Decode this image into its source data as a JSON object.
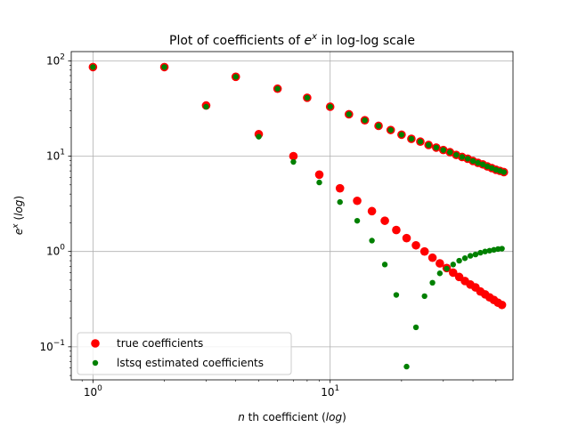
{
  "chart_data": {
    "type": "scatter",
    "title_main": "Plot of coefficients of ",
    "title_base": "e",
    "title_sup": "x",
    "title_tail": " in log-log scale",
    "xlabel_pre": "n",
    "xlabel_mid": " th coefficient (",
    "xlabel_log": "log",
    "xlabel_post": ")",
    "ylabel_base": "e",
    "ylabel_sup": "x",
    "ylabel_mid": " (",
    "ylabel_log": "log",
    "ylabel_post": ")",
    "xscale": "log",
    "yscale": "log",
    "xlim": [
      0.81,
      59
    ],
    "ylim": [
      0.045,
      125
    ],
    "grid": true,
    "legend_position": "lower-left",
    "x_ticks": [
      {
        "value": 1,
        "base": "10",
        "exp": "0"
      },
      {
        "value": 10,
        "base": "10",
        "exp": "1"
      }
    ],
    "y_ticks": [
      {
        "value": 0.1,
        "base": "10",
        "exp": "−1"
      },
      {
        "value": 1,
        "base": "10",
        "exp": "0"
      },
      {
        "value": 10,
        "base": "10",
        "exp": "1"
      },
      {
        "value": 100,
        "base": "10",
        "exp": "2"
      }
    ],
    "series": [
      {
        "name": "true coefficients",
        "color": "#ff0000",
        "marker_size": 4.8,
        "points": [
          [
            1,
            86
          ],
          [
            2,
            86
          ],
          [
            3,
            34
          ],
          [
            4,
            68
          ],
          [
            5,
            17
          ],
          [
            6,
            51
          ],
          [
            7,
            10
          ],
          [
            8,
            41
          ],
          [
            9,
            6.4
          ],
          [
            10,
            33
          ],
          [
            11,
            4.6
          ],
          [
            12,
            27.5
          ],
          [
            13,
            3.4
          ],
          [
            14,
            23.8
          ],
          [
            15,
            2.65
          ],
          [
            16,
            20.8
          ],
          [
            17,
            2.1
          ],
          [
            18,
            18.8
          ],
          [
            19,
            1.68
          ],
          [
            20,
            16.8
          ],
          [
            21,
            1.38
          ],
          [
            22,
            15.2
          ],
          [
            23,
            1.16
          ],
          [
            24,
            14.2
          ],
          [
            25,
            1.0
          ],
          [
            26,
            13.1
          ],
          [
            27,
            0.86
          ],
          [
            28,
            12.3
          ],
          [
            29,
            0.75
          ],
          [
            30,
            11.6
          ],
          [
            31,
            0.67
          ],
          [
            32,
            11.0
          ],
          [
            33,
            0.6
          ],
          [
            34,
            10.3
          ],
          [
            35,
            0.54
          ],
          [
            36,
            9.8
          ],
          [
            37,
            0.49
          ],
          [
            38,
            9.4
          ],
          [
            39,
            0.45
          ],
          [
            40,
            8.9
          ],
          [
            41,
            0.42
          ],
          [
            42,
            8.5
          ],
          [
            43,
            0.38
          ],
          [
            44,
            8.2
          ],
          [
            45,
            0.355
          ],
          [
            46,
            7.8
          ],
          [
            47,
            0.33
          ],
          [
            48,
            7.5
          ],
          [
            49,
            0.31
          ],
          [
            50,
            7.2
          ],
          [
            51,
            0.29
          ],
          [
            52,
            7.0
          ],
          [
            53,
            0.275
          ],
          [
            54,
            6.8
          ]
        ]
      },
      {
        "name": "lstsq estimated coefficients",
        "color": "#008000",
        "marker_size": 3.2,
        "points": [
          [
            1,
            86
          ],
          [
            2,
            86
          ],
          [
            3,
            33
          ],
          [
            4,
            68
          ],
          [
            5,
            16
          ],
          [
            6,
            51
          ],
          [
            7,
            8.7
          ],
          [
            8,
            41
          ],
          [
            9,
            5.3
          ],
          [
            10,
            33
          ],
          [
            11,
            3.3
          ],
          [
            12,
            27.5
          ],
          [
            13,
            2.1
          ],
          [
            14,
            23.8
          ],
          [
            15,
            1.3
          ],
          [
            16,
            20.8
          ],
          [
            17,
            0.73
          ],
          [
            18,
            18.8
          ],
          [
            19,
            0.35
          ],
          [
            20,
            16.8
          ],
          [
            21,
            0.062
          ],
          [
            22,
            15.2
          ],
          [
            23,
            0.16
          ],
          [
            24,
            14.2
          ],
          [
            25,
            0.34
          ],
          [
            26,
            13.1
          ],
          [
            27,
            0.47
          ],
          [
            28,
            12.3
          ],
          [
            29,
            0.59
          ],
          [
            30,
            11.6
          ],
          [
            31,
            0.66
          ],
          [
            32,
            11.0
          ],
          [
            33,
            0.73
          ],
          [
            34,
            10.3
          ],
          [
            35,
            0.8
          ],
          [
            36,
            9.8
          ],
          [
            37,
            0.85
          ],
          [
            38,
            9.4
          ],
          [
            39,
            0.9
          ],
          [
            40,
            8.9
          ],
          [
            41,
            0.93
          ],
          [
            42,
            8.5
          ],
          [
            43,
            0.97
          ],
          [
            44,
            8.2
          ],
          [
            45,
            1.0
          ],
          [
            46,
            7.8
          ],
          [
            47,
            1.02
          ],
          [
            48,
            7.5
          ],
          [
            49,
            1.04
          ],
          [
            50,
            7.2
          ],
          [
            51,
            1.06
          ],
          [
            52,
            7.0
          ],
          [
            53,
            1.07
          ],
          [
            54,
            6.8
          ]
        ]
      }
    ]
  }
}
